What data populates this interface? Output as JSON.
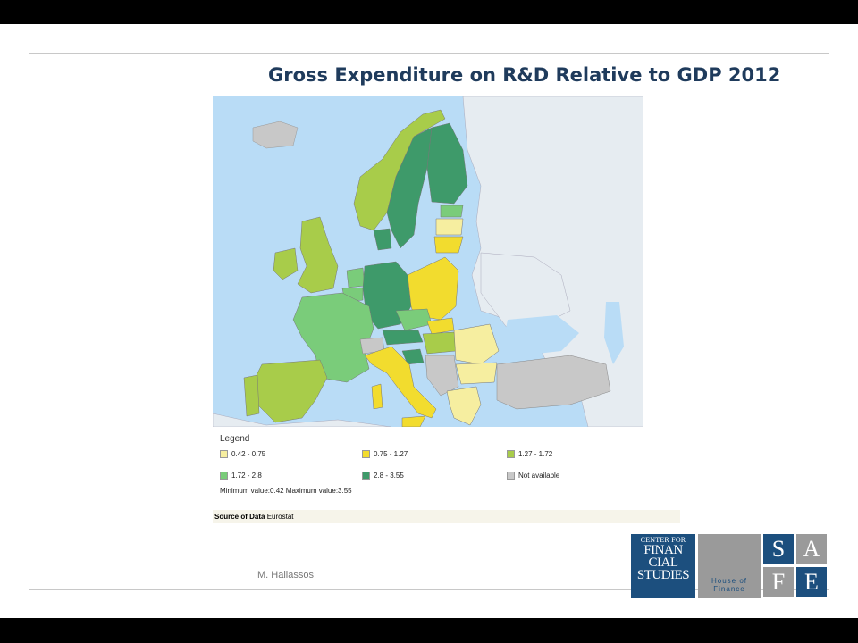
{
  "slide": {
    "title": "Gross Expenditure on R&D Relative to GDP 2012",
    "author": "M. Haliassos"
  },
  "legend": {
    "title": "Legend",
    "items": [
      {
        "label": "0.42 - 0.75",
        "color": "#f6eea0"
      },
      {
        "label": "0.75 - 1.27",
        "color": "#f2dc2e"
      },
      {
        "label": "1.27 - 1.72",
        "color": "#a8cc4a"
      },
      {
        "label": "1.72 - 2.8",
        "color": "#7acc7a"
      },
      {
        "label": "2.8 - 3.55",
        "color": "#3e9a6a"
      },
      {
        "label": "Not available",
        "color": "#c8c8c8"
      }
    ],
    "minmax": "Minimum value:0.42 Maximum value:3.55"
  },
  "source": {
    "label": "Source of Data",
    "value": "Eurostat"
  },
  "map": {
    "sea_color": "#b9dcf6",
    "non_eu_color": "#e6ecf1"
  },
  "logos": {
    "cfs": {
      "line1": "CENTER FOR",
      "line2": "FINAN",
      "line3": "CIAL",
      "line4": "STUDIES",
      "color": "#1c4f7e"
    },
    "hof": {
      "line1": "House of",
      "line2": "Finance"
    },
    "safe": [
      "S",
      "A",
      "F",
      "E"
    ]
  }
}
